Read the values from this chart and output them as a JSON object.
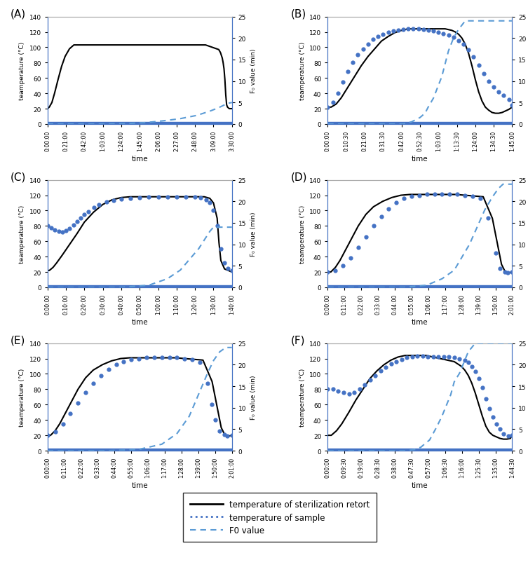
{
  "panels": [
    {
      "label": "A",
      "temp_retort_x": [
        0,
        2,
        5,
        8,
        12,
        16,
        20,
        25,
        30,
        40,
        60,
        80,
        100,
        120,
        140,
        160,
        170,
        175,
        180,
        185,
        190,
        195,
        197,
        199,
        200,
        201,
        202,
        203,
        204,
        205,
        207,
        210
      ],
      "temp_retort_y": [
        20,
        22,
        28,
        40,
        58,
        75,
        88,
        98,
        103,
        103,
        103,
        103,
        103,
        103,
        103,
        103,
        103,
        103,
        103,
        101,
        99,
        97,
        93,
        86,
        80,
        72,
        58,
        38,
        25,
        22,
        20,
        20
      ],
      "temp_sample_x": [
        0,
        30,
        60,
        90,
        120,
        150,
        180,
        210
      ],
      "temp_sample_y": [
        0,
        0,
        0,
        0,
        0,
        0,
        0,
        0
      ],
      "f0_x": [
        0,
        60,
        90,
        110,
        130,
        150,
        170,
        185,
        195,
        200,
        205,
        210
      ],
      "f0_y": [
        0,
        0,
        0.1,
        0.3,
        0.7,
        1.2,
        2.0,
        3.0,
        3.8,
        4.3,
        4.8,
        5.0
      ],
      "xtick_labels": [
        "0:00:00",
        "0:21:00",
        "0:42:00",
        "1:03:00",
        "1:24:00",
        "1:45:00",
        "2:06:00",
        "2:27:00",
        "2:48:00",
        "3:09:00",
        "3:30:00"
      ],
      "total_minutes": 210
    },
    {
      "label": "B",
      "temp_retort_x": [
        0,
        2,
        5,
        8,
        12,
        16,
        20,
        24,
        28,
        32,
        36,
        40,
        44,
        48,
        52,
        56,
        60,
        64,
        68,
        70,
        72,
        74,
        76,
        78,
        80,
        82,
        84,
        86,
        88,
        90,
        92,
        94,
        96,
        98,
        100,
        102,
        104,
        106,
        108,
        110
      ],
      "temp_retort_y": [
        22,
        22,
        26,
        34,
        48,
        62,
        76,
        88,
        98,
        108,
        114,
        119,
        122,
        124,
        124,
        124,
        124,
        124,
        124,
        124,
        123,
        122,
        120,
        117,
        112,
        104,
        92,
        76,
        58,
        42,
        30,
        22,
        18,
        15,
        14,
        14,
        15,
        17,
        19,
        22
      ],
      "temp_sample_x": [
        0,
        3,
        6,
        9,
        12,
        15,
        18,
        21,
        24,
        27,
        30,
        33,
        36,
        39,
        42,
        45,
        48,
        51,
        54,
        57,
        60,
        63,
        66,
        69,
        72,
        75,
        78,
        81,
        84,
        87,
        90,
        93,
        96,
        99,
        102,
        105,
        108,
        110
      ],
      "temp_sample_y": [
        22,
        28,
        40,
        55,
        68,
        80,
        90,
        98,
        104,
        110,
        114,
        117,
        120,
        121,
        122,
        123,
        124,
        124,
        124,
        123,
        122,
        121,
        120,
        118,
        116,
        113,
        109,
        104,
        97,
        88,
        77,
        66,
        56,
        48,
        42,
        37,
        32,
        25
      ],
      "f0_x": [
        0,
        20,
        35,
        45,
        50,
        55,
        58,
        60,
        63,
        65,
        68,
        70,
        72,
        75,
        78,
        80,
        82,
        84,
        86,
        88,
        90,
        95,
        100,
        105,
        110
      ],
      "f0_y": [
        0,
        0,
        0,
        0,
        0.5,
        1.5,
        2.5,
        4,
        6,
        8,
        11,
        14,
        17,
        20,
        22,
        23,
        24,
        24,
        24,
        24,
        24,
        24,
        24,
        24,
        24
      ],
      "xtick_labels": [
        "0:00:00",
        "0:10:30",
        "0:21:00",
        "0:31:30",
        "0:42:00",
        "0:52:30",
        "1:03:00",
        "1:13:30",
        "1:24:00",
        "1:34:30",
        "1:45:00"
      ],
      "total_minutes": 110
    },
    {
      "label": "C",
      "temp_retort_x": [
        0,
        1,
        3,
        5,
        8,
        12,
        16,
        20,
        25,
        30,
        35,
        40,
        45,
        55,
        65,
        75,
        85,
        88,
        90,
        92,
        93,
        94,
        96,
        98,
        100
      ],
      "temp_retort_y": [
        22,
        22,
        26,
        32,
        42,
        56,
        70,
        85,
        98,
        108,
        114,
        117,
        118,
        118,
        118,
        118,
        118,
        116,
        110,
        90,
        58,
        35,
        24,
        22,
        20
      ],
      "temp_sample_x": [
        0,
        2,
        4,
        6,
        8,
        10,
        12,
        14,
        16,
        18,
        20,
        22,
        25,
        28,
        32,
        36,
        40,
        45,
        50,
        55,
        60,
        65,
        70,
        75,
        80,
        83,
        86,
        88,
        90,
        92,
        94,
        96,
        98,
        100
      ],
      "temp_sample_y": [
        80,
        78,
        75,
        73,
        72,
        74,
        77,
        81,
        86,
        90,
        95,
        99,
        104,
        108,
        111,
        113,
        115,
        116,
        117,
        118,
        118,
        118,
        118,
        118,
        118,
        117,
        114,
        110,
        100,
        80,
        50,
        32,
        25,
        22
      ],
      "f0_x": [
        0,
        20,
        40,
        55,
        65,
        72,
        78,
        82,
        85,
        88,
        90,
        92,
        95,
        100
      ],
      "f0_y": [
        0,
        0,
        0,
        0.5,
        2,
        4,
        7,
        9,
        11,
        13,
        14,
        14,
        14,
        14
      ],
      "xtick_labels": [
        "0:00:00",
        "0:10:00",
        "0:20:00",
        "0:30:00",
        "0:40:00",
        "0:50:00",
        "1:00:00",
        "1:10:00",
        "1:20:00",
        "1:30:00",
        "1:40:00"
      ],
      "total_minutes": 100
    },
    {
      "label": "D",
      "temp_retort_x": [
        0,
        2,
        5,
        8,
        12,
        16,
        20,
        25,
        30,
        36,
        42,
        48,
        54,
        60,
        66,
        72,
        78,
        84,
        90,
        96,
        102,
        108,
        112,
        114,
        116,
        117,
        118,
        119,
        121
      ],
      "temp_retort_y": [
        20,
        20,
        26,
        35,
        50,
        65,
        80,
        95,
        105,
        112,
        117,
        120,
        121,
        121,
        121,
        121,
        121,
        121,
        120,
        119,
        118,
        90,
        50,
        30,
        22,
        20,
        19,
        19,
        20
      ],
      "temp_sample_x": [
        0,
        5,
        10,
        15,
        20,
        25,
        30,
        35,
        40,
        45,
        50,
        55,
        60,
        65,
        70,
        75,
        80,
        85,
        90,
        95,
        100,
        105,
        110,
        113,
        116,
        118,
        121
      ],
      "temp_sample_y": [
        20,
        22,
        28,
        38,
        52,
        66,
        80,
        92,
        102,
        110,
        116,
        119,
        120,
        121,
        121,
        121,
        121,
        121,
        120,
        119,
        116,
        90,
        45,
        25,
        20,
        19,
        20
      ],
      "f0_x": [
        0,
        30,
        50,
        65,
        75,
        83,
        88,
        93,
        98,
        103,
        108,
        112,
        115,
        118,
        121
      ],
      "f0_y": [
        0,
        0,
        0,
        0.5,
        2,
        4,
        7,
        10,
        14,
        18,
        21,
        23,
        24,
        24,
        24
      ],
      "xtick_labels": [
        "0:00:00",
        "0:11:00",
        "0:22:00",
        "0:33:00",
        "0:44:00",
        "0:55:00",
        "1:06:00",
        "1:17:00",
        "1:28:00",
        "1:39:00",
        "1:50:00",
        "2:01:00"
      ],
      "total_minutes": 121
    },
    {
      "label": "E",
      "temp_retort_x": [
        0,
        2,
        5,
        8,
        12,
        16,
        20,
        25,
        30,
        36,
        42,
        48,
        54,
        60,
        66,
        72,
        78,
        84,
        90,
        96,
        102,
        108,
        112,
        114,
        116,
        117,
        118,
        119,
        121
      ],
      "temp_retort_y": [
        20,
        20,
        26,
        35,
        50,
        65,
        80,
        95,
        105,
        112,
        117,
        120,
        121,
        121,
        121,
        121,
        121,
        121,
        120,
        119,
        118,
        90,
        50,
        30,
        22,
        20,
        19,
        19,
        20
      ],
      "temp_sample_x": [
        0,
        5,
        10,
        15,
        20,
        25,
        30,
        35,
        40,
        45,
        50,
        55,
        60,
        65,
        70,
        75,
        80,
        85,
        90,
        95,
        100,
        105,
        108,
        110,
        113,
        116,
        118,
        121
      ],
      "temp_sample_y": [
        20,
        25,
        35,
        48,
        62,
        76,
        88,
        98,
        106,
        112,
        116,
        119,
        120,
        121,
        121,
        121,
        121,
        121,
        120,
        119,
        115,
        88,
        60,
        40,
        26,
        21,
        19,
        20
      ],
      "f0_x": [
        0,
        40,
        60,
        75,
        85,
        93,
        99,
        105,
        109,
        113,
        117,
        119,
        121
      ],
      "f0_y": [
        0,
        0,
        0.3,
        1.5,
        4,
        8,
        13,
        18,
        21,
        23,
        24,
        24,
        24
      ],
      "xtick_labels": [
        "0:00:00",
        "0:11:00",
        "0:22:00",
        "0:33:00",
        "0:44:00",
        "0:55:00",
        "1:06:00",
        "1:17:00",
        "1:28:00",
        "1:39:00",
        "1:50:00",
        "2:01:00"
      ],
      "total_minutes": 121
    },
    {
      "label": "F",
      "temp_retort_x": [
        0,
        2,
        5,
        8,
        12,
        16,
        20,
        24,
        28,
        32,
        36,
        40,
        44,
        48,
        52,
        56,
        60,
        64,
        68,
        72,
        74,
        76,
        78,
        80,
        82,
        84,
        86,
        88,
        90,
        92,
        94,
        96,
        98,
        100,
        102,
        104,
        105
      ],
      "temp_retort_y": [
        20,
        20,
        26,
        35,
        50,
        66,
        80,
        94,
        104,
        112,
        118,
        122,
        124,
        124,
        124,
        124,
        122,
        120,
        118,
        116,
        113,
        110,
        105,
        98,
        88,
        75,
        60,
        45,
        32,
        24,
        20,
        18,
        16,
        15,
        15,
        16,
        20
      ],
      "temp_sample_x": [
        0,
        3,
        6,
        9,
        12,
        15,
        18,
        21,
        24,
        27,
        30,
        33,
        36,
        39,
        42,
        45,
        48,
        51,
        54,
        57,
        60,
        63,
        66,
        69,
        72,
        75,
        78,
        80,
        82,
        84,
        86,
        88,
        90,
        92,
        94,
        96,
        98,
        100,
        103,
        105
      ],
      "temp_sample_y": [
        80,
        80,
        78,
        76,
        74,
        76,
        80,
        86,
        92,
        98,
        104,
        109,
        113,
        116,
        119,
        121,
        122,
        123,
        123,
        122,
        122,
        122,
        122,
        122,
        121,
        120,
        118,
        115,
        110,
        103,
        94,
        82,
        68,
        55,
        44,
        35,
        28,
        22,
        19,
        20
      ],
      "f0_x": [
        0,
        20,
        35,
        45,
        50,
        53,
        55,
        58,
        60,
        62,
        65,
        68,
        70,
        72,
        75,
        78,
        80,
        82,
        84,
        86,
        88,
        90,
        92,
        95,
        100,
        105
      ],
      "f0_y": [
        0,
        0,
        0,
        0,
        0.3,
        0.8,
        1.5,
        2.5,
        4,
        5.5,
        8,
        11,
        13,
        16,
        18,
        21,
        23,
        24,
        25,
        25,
        25,
        25,
        25,
        25,
        25,
        25
      ],
      "xtick_labels": [
        "0:00:00",
        "0:09:30",
        "0:19:00",
        "0:28:30",
        "0:38:00",
        "0:47:30",
        "0:57:00",
        "1:06:30",
        "1:16:00",
        "1:25:30",
        "1:35:00",
        "1:44:30"
      ],
      "total_minutes": 105
    }
  ],
  "ylim_temp": [
    0,
    140
  ],
  "ylim_f0": [
    0,
    25
  ],
  "yticks_temp": [
    0,
    20,
    40,
    60,
    80,
    100,
    120,
    140
  ],
  "yticks_f0": [
    0,
    5,
    10,
    15,
    20,
    25
  ],
  "temp_retort_color": "black",
  "temp_sample_color": "#4472C4",
  "f0_color": "#5B9BD5",
  "spine_color": "#4472C4",
  "fill_color": "#4472C4",
  "xlabel": "time",
  "ylabel_left": "teamperature (°C)",
  "ylabel_right": "F₀ value (min)",
  "legend_line1": "temperature of sterilization retort",
  "legend_line2": "temperature of sample",
  "legend_line3": "F0 value"
}
